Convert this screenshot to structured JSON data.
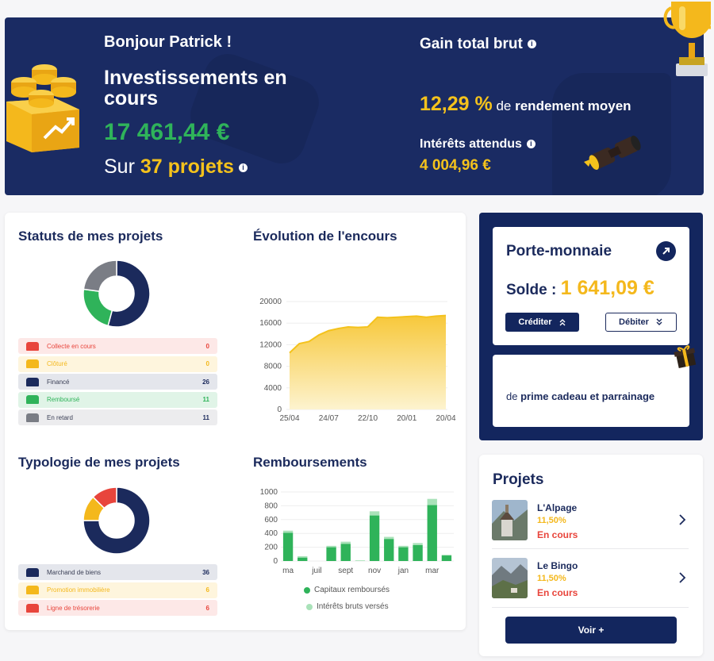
{
  "hero": {
    "greeting": "Bonjour Patrick !",
    "title": "Investissements en cours",
    "amount": "17 461,44 €",
    "sur_prefix": "Sur ",
    "projects_count": "37 projets",
    "info_symbol": "i",
    "gain_label": "Gain total brut",
    "yield_pct": "12,29 %",
    "yield_text": " de ",
    "yield_text_bold": "rendement moyen",
    "interest_label": "Intérêts attendus",
    "interest_value": "4 004,96 €"
  },
  "statuts": {
    "title": "Statuts de mes projets",
    "items": [
      {
        "label": "Collecte en cours",
        "count": "0",
        "color": "#e8453c",
        "bg": "#fde8e7"
      },
      {
        "label": "Clôturé",
        "count": "0",
        "color": "#f4b81c",
        "bg": "#fef5dd"
      },
      {
        "label": "Financé",
        "count": "26",
        "color": "#1b2a5c",
        "bg": "#e4e6ec"
      },
      {
        "label": "Remboursé",
        "count": "11",
        "color": "#2fb35a",
        "bg": "#e0f4e7"
      },
      {
        "label": "En retard",
        "count": "11",
        "color": "#7a7d85",
        "bg": "#ececee"
      }
    ]
  },
  "typologie": {
    "title": "Typologie de mes projets",
    "items": [
      {
        "label": "Marchand de biens",
        "count": "36",
        "color": "#1b2a5c",
        "bg": "#e4e6ec"
      },
      {
        "label": "Promotion immobilière",
        "count": "6",
        "color": "#f4b81c",
        "bg": "#fef5dd"
      },
      {
        "label": "Ligne de trésorerie",
        "count": "6",
        "color": "#e8453c",
        "bg": "#fde8e7"
      }
    ]
  },
  "evolution": {
    "title": "Évolution de l'encours"
  },
  "remboursements": {
    "title": "Remboursements",
    "legend_capital": "Capitaux remboursés",
    "legend_interets": "Intérêts bruts versés"
  },
  "wallet": {
    "title": "Porte-monnaie",
    "solde_label": "Solde : ",
    "solde_value": "1 641,09 €",
    "crediter_label": "Créditer",
    "debiter_label": "Débiter",
    "prime_prefix": "de ",
    "prime_bold": "prime cadeau et parrainage"
  },
  "projets": {
    "title": "Projets",
    "items": [
      {
        "name": "L'Alpage",
        "rate": "11,50%",
        "status": "En cours"
      },
      {
        "name": "Le Bingo",
        "rate": "11,50%",
        "status": "En cours"
      }
    ],
    "voir_label": "Voir +"
  },
  "chart_data": [
    {
      "type": "pie",
      "title": "Statuts de mes projets",
      "categories": [
        "Collecte en cours",
        "Clôturé",
        "Financé",
        "Remboursé",
        "En retard"
      ],
      "values": [
        0,
        0,
        26,
        11,
        11
      ],
      "colors": [
        "#e8453c",
        "#f4b81c",
        "#1b2a5c",
        "#2fb35a",
        "#7a7d85"
      ]
    },
    {
      "type": "area",
      "title": "Évolution de l'encours",
      "x": [
        "25/04",
        "",
        "",
        "",
        "24/07",
        "",
        "",
        "",
        "22/10",
        "",
        "",
        "",
        "20/01",
        "",
        "",
        "",
        "20/04"
      ],
      "xticks": [
        "25/04",
        "24/07",
        "22/10",
        "20/01",
        "20/04"
      ],
      "values": [
        10500,
        12200,
        12600,
        13800,
        14600,
        15000,
        15300,
        15200,
        15300,
        17100,
        17000,
        17100,
        17200,
        17300,
        17100,
        17300,
        17400
      ],
      "yticks": [
        "0",
        "4000",
        "8000",
        "12000",
        "16000",
        "20000"
      ],
      "ylim": [
        0,
        20000
      ],
      "color": "#f7c83a",
      "grid": true
    },
    {
      "type": "pie",
      "title": "Typologie de mes projets",
      "categories": [
        "Marchand de biens",
        "Promotion immobilière",
        "Ligne de trésorerie"
      ],
      "values": [
        36,
        6,
        6
      ],
      "colors": [
        "#1b2a5c",
        "#f4b81c",
        "#e8453c"
      ]
    },
    {
      "type": "bar",
      "title": "Remboursements",
      "categories": [
        "ma",
        "",
        "juil",
        "",
        "sept",
        "",
        "nov",
        "",
        "jan",
        "",
        "mar",
        ""
      ],
      "xticks": [
        "ma",
        "juil",
        "sept",
        "nov",
        "jan",
        "mar"
      ],
      "series": [
        {
          "name": "Capitaux remboursés",
          "values": [
            410,
            50,
            0,
            200,
            250,
            0,
            660,
            320,
            200,
            230,
            810,
            80
          ],
          "color": "#2fb35a"
        },
        {
          "name": "Intérêts bruts versés",
          "values": [
            30,
            20,
            0,
            20,
            30,
            10,
            60,
            30,
            20,
            30,
            90,
            10
          ],
          "color": "#a9e2b9"
        }
      ],
      "yticks": [
        "0",
        "200",
        "400",
        "600",
        "800",
        "1000"
      ],
      "ylim": [
        0,
        1000
      ],
      "grid": true
    }
  ]
}
